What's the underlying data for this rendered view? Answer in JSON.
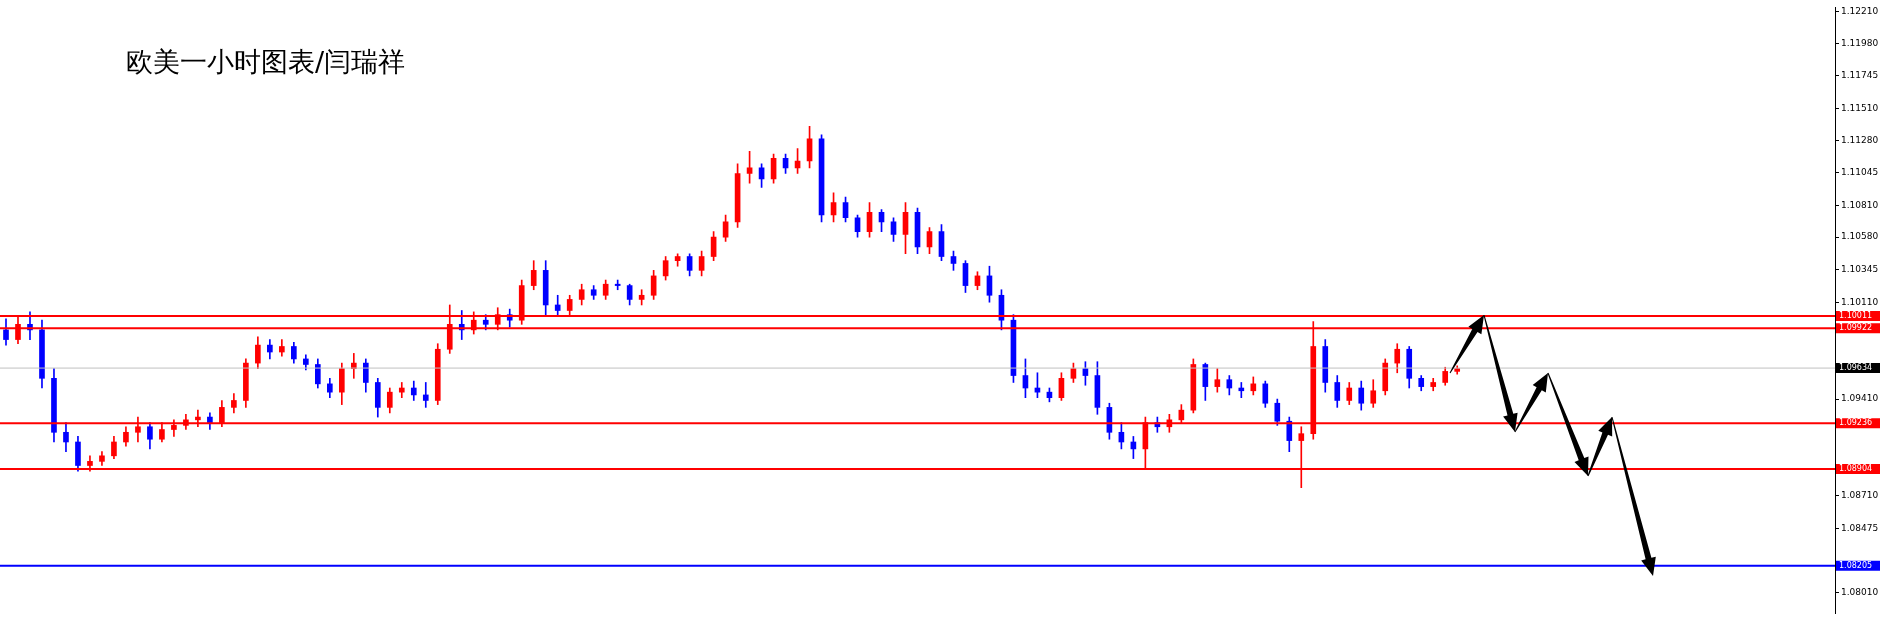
{
  "chart_data": {
    "type": "candlestick",
    "title": "欧美一小时图表/闫瑞祥",
    "categories": [
      null,
      null,
      null,
      null,
      null,
      null,
      null,
      null,
      null,
      null,
      null,
      null,
      null,
      null,
      null,
      null,
      null,
      null,
      null,
      null,
      null,
      null,
      null,
      null,
      null,
      null,
      null,
      null,
      null,
      null,
      null,
      null,
      null,
      null,
      null,
      null,
      null,
      null,
      null,
      null,
      null,
      null,
      null,
      null,
      null,
      null,
      null,
      null,
      null,
      null,
      null,
      null,
      null,
      null,
      null,
      null,
      null,
      null,
      null,
      null,
      null,
      null,
      null,
      null,
      null,
      null,
      null,
      null,
      null,
      null,
      null,
      null,
      null,
      null,
      null,
      null,
      null,
      null,
      null,
      null,
      null,
      null,
      null,
      null,
      null,
      null,
      null,
      null,
      null,
      null,
      null,
      null,
      null,
      null,
      null,
      null,
      null,
      null,
      null,
      null,
      null,
      null,
      null,
      null,
      null,
      null,
      null,
      null,
      null,
      null,
      null,
      null,
      null,
      null,
      null,
      null,
      null,
      null,
      null,
      null,
      null,
      null,
      null,
      null,
      null,
      null,
      null,
      null,
      null,
      null,
      null,
      null,
      null,
      null,
      null,
      null,
      null,
      null,
      null,
      null,
      null,
      null,
      null,
      null,
      null,
      null,
      null,
      null,
      null,
      null,
      null,
      null,
      null
    ],
    "ohlc": [
      [
        1.0991,
        1.0999,
        1.098,
        1.0984
      ],
      [
        1.0984,
        1.1001,
        1.0981,
        1.0995
      ],
      [
        1.0995,
        1.1004,
        1.0984,
        1.0991
      ],
      [
        1.0991,
        1.0998,
        1.0949,
        1.0956
      ],
      [
        1.0956,
        1.0963,
        1.091,
        1.0917
      ],
      [
        1.0917,
        1.0924,
        1.0903,
        1.091
      ],
      [
        1.091,
        1.0914,
        1.0889,
        1.0893
      ],
      [
        1.0893,
        1.09,
        1.0889,
        1.0896
      ],
      [
        1.0896,
        1.0903,
        1.0893,
        1.09
      ],
      [
        1.09,
        1.0914,
        1.0898,
        1.091
      ],
      [
        1.091,
        1.0921,
        1.0907,
        1.0917
      ],
      [
        1.0917,
        1.0928,
        1.091,
        1.0921
      ],
      [
        1.0921,
        1.0924,
        1.0905,
        1.0912
      ],
      [
        1.0912,
        1.0924,
        1.091,
        1.0919
      ],
      [
        1.0919,
        1.0926,
        1.0914,
        1.0922
      ],
      [
        1.0922,
        1.093,
        1.0919,
        1.0926
      ],
      [
        1.0926,
        1.0933,
        1.0921,
        1.0928
      ],
      [
        1.0928,
        1.0931,
        1.0919,
        1.0924
      ],
      [
        1.0924,
        1.094,
        1.0921,
        1.0935
      ],
      [
        1.0935,
        1.0945,
        1.0931,
        1.094
      ],
      [
        1.094,
        1.097,
        1.0935,
        1.0967
      ],
      [
        1.0967,
        1.0986,
        1.0963,
        1.098
      ],
      [
        1.098,
        1.0984,
        1.097,
        1.0975
      ],
      [
        1.0975,
        1.0984,
        1.0972,
        1.0979
      ],
      [
        1.0979,
        1.0982,
        1.0967,
        1.097
      ],
      [
        1.097,
        1.0973,
        1.0962,
        1.0966
      ],
      [
        1.0966,
        1.097,
        1.0949,
        1.0952
      ],
      [
        1.0952,
        1.0956,
        1.0942,
        1.0946
      ],
      [
        1.0946,
        1.0967,
        1.0937,
        1.0963
      ],
      [
        1.0963,
        1.0974,
        1.0956,
        1.0967
      ],
      [
        1.0967,
        1.097,
        1.0946,
        1.0953
      ],
      [
        1.0953,
        1.0956,
        1.0928,
        1.0935
      ],
      [
        1.0935,
        1.0949,
        1.0931,
        1.0946
      ],
      [
        1.0946,
        1.0953,
        1.0942,
        1.0949
      ],
      [
        1.0949,
        1.0954,
        1.094,
        1.0944
      ],
      [
        1.0944,
        1.0953,
        1.0935,
        1.094
      ],
      [
        1.094,
        1.0981,
        1.0937,
        1.0977
      ],
      [
        1.0977,
        1.1009,
        1.0974,
        1.0995
      ],
      [
        1.0995,
        1.1005,
        1.0984,
        1.0991
      ],
      [
        1.0991,
        1.1004,
        1.0988,
        1.0998
      ],
      [
        1.0998,
        1.1002,
        1.0991,
        1.0995
      ],
      [
        1.0995,
        1.1007,
        1.0991,
        1.1002
      ],
      [
        1.1002,
        1.1006,
        1.0993,
        1.0998
      ],
      [
        1.0998,
        1.1027,
        1.0995,
        1.1023
      ],
      [
        1.1023,
        1.1041,
        1.102,
        1.1034
      ],
      [
        1.1034,
        1.1041,
        1.1002,
        1.1009
      ],
      [
        1.1009,
        1.1016,
        1.1002,
        1.1005
      ],
      [
        1.1005,
        1.1016,
        1.1002,
        1.1013
      ],
      [
        1.1013,
        1.1024,
        1.1009,
        1.102
      ],
      [
        1.102,
        1.1023,
        1.1013,
        1.1016
      ],
      [
        1.1016,
        1.1027,
        1.1013,
        1.1024
      ],
      [
        1.1024,
        1.1027,
        1.102,
        1.1023
      ],
      [
        1.1023,
        1.1024,
        1.1009,
        1.1013
      ],
      [
        1.1013,
        1.102,
        1.1009,
        1.1016
      ],
      [
        1.1016,
        1.1034,
        1.1013,
        1.103
      ],
      [
        1.103,
        1.1044,
        1.1027,
        1.1041
      ],
      [
        1.1041,
        1.1046,
        1.1037,
        1.1044
      ],
      [
        1.1044,
        1.1046,
        1.103,
        1.1034
      ],
      [
        1.1034,
        1.1048,
        1.103,
        1.1044
      ],
      [
        1.1044,
        1.1062,
        1.1041,
        1.1058
      ],
      [
        1.1058,
        1.1074,
        1.1055,
        1.1069
      ],
      [
        1.1069,
        1.1111,
        1.1065,
        1.1104
      ],
      [
        1.1104,
        1.112,
        1.1097,
        1.1108
      ],
      [
        1.1108,
        1.1111,
        1.1094,
        1.11
      ],
      [
        1.11,
        1.1118,
        1.1097,
        1.1115
      ],
      [
        1.1115,
        1.1118,
        1.1104,
        1.1108
      ],
      [
        1.1108,
        1.1122,
        1.1104,
        1.1113
      ],
      [
        1.1113,
        1.1138,
        1.1108,
        1.1129
      ],
      [
        1.1129,
        1.1132,
        1.1069,
        1.1074
      ],
      [
        1.1074,
        1.109,
        1.1069,
        1.1083
      ],
      [
        1.1083,
        1.1087,
        1.1069,
        1.1072
      ],
      [
        1.1072,
        1.1074,
        1.1058,
        1.1062
      ],
      [
        1.1062,
        1.1083,
        1.1058,
        1.1076
      ],
      [
        1.1076,
        1.1078,
        1.1062,
        1.1069
      ],
      [
        1.1069,
        1.1072,
        1.1055,
        1.106
      ],
      [
        1.106,
        1.1083,
        1.1046,
        1.1076
      ],
      [
        1.1076,
        1.1079,
        1.1046,
        1.1051
      ],
      [
        1.1051,
        1.1065,
        1.1046,
        1.1062
      ],
      [
        1.1062,
        1.1067,
        1.1041,
        1.1044
      ],
      [
        1.1044,
        1.1048,
        1.1034,
        1.1039
      ],
      [
        1.1039,
        1.1041,
        1.1018,
        1.1023
      ],
      [
        1.1023,
        1.1033,
        1.102,
        1.103
      ],
      [
        1.103,
        1.1037,
        1.1011,
        1.1016
      ],
      [
        1.1016,
        1.102,
        1.0991,
        1.0998
      ],
      [
        1.0998,
        1.1002,
        1.0953,
        1.0958
      ],
      [
        1.0958,
        1.097,
        1.0942,
        1.0949
      ],
      [
        1.0949,
        1.096,
        1.0942,
        1.0946
      ],
      [
        1.0946,
        1.0949,
        1.0939,
        1.0942
      ],
      [
        1.0942,
        1.096,
        1.094,
        1.0956
      ],
      [
        1.0956,
        1.0967,
        1.0953,
        1.0963
      ],
      [
        1.0963,
        1.0968,
        1.0951,
        1.0958
      ],
      [
        1.0958,
        1.0968,
        1.093,
        1.0935
      ],
      [
        1.0935,
        1.0938,
        1.0912,
        1.0917
      ],
      [
        1.0917,
        1.0924,
        1.0905,
        1.091
      ],
      [
        1.091,
        1.0914,
        1.0898,
        1.0905
      ],
      [
        1.0905,
        1.0928,
        1.0891,
        1.0924
      ],
      [
        1.0924,
        1.0928,
        1.0917,
        1.0921
      ],
      [
        1.0921,
        1.093,
        1.0917,
        1.0926
      ],
      [
        1.0926,
        1.0937,
        1.0924,
        1.0933
      ],
      [
        1.0933,
        1.097,
        1.0931,
        1.0966
      ],
      [
        1.0966,
        1.0967,
        1.094,
        1.095
      ],
      [
        1.095,
        1.0963,
        1.0946,
        1.0955
      ],
      [
        1.0955,
        1.0958,
        1.0944,
        1.0949
      ],
      [
        1.0949,
        1.0953,
        1.0942,
        1.0947
      ],
      [
        1.0947,
        1.0957,
        1.0944,
        1.0952
      ],
      [
        1.0952,
        1.0954,
        1.0935,
        1.0938
      ],
      [
        1.0938,
        1.0941,
        1.0922,
        1.0925
      ],
      [
        1.0925,
        1.0928,
        1.0903,
        1.0911
      ],
      [
        1.0911,
        1.0921,
        1.0877,
        1.0916
      ],
      [
        1.0916,
        1.0997,
        1.0912,
        1.0979
      ],
      [
        1.0979,
        1.0984,
        1.0946,
        1.0953
      ],
      [
        1.0953,
        1.0958,
        1.0935,
        1.094
      ],
      [
        1.094,
        1.0953,
        1.0937,
        1.0949
      ],
      [
        1.0949,
        1.0954,
        1.0933,
        1.0938
      ],
      [
        1.0938,
        1.0955,
        1.0935,
        1.0947
      ],
      [
        1.0947,
        1.097,
        1.0944,
        1.0967
      ],
      [
        1.0967,
        1.0981,
        1.096,
        1.0977
      ],
      [
        1.0977,
        1.0979,
        1.0949,
        1.0956
      ],
      [
        1.0956,
        1.0958,
        1.0947,
        1.095
      ],
      [
        1.095,
        1.0956,
        1.0947,
        1.0953
      ],
      [
        1.0953,
        1.0964,
        1.0951,
        1.0961
      ],
      [
        1.0961,
        1.0965,
        1.0959,
        1.0963
      ],
      null,
      null,
      null,
      null,
      null,
      null,
      null,
      null,
      null,
      null,
      null,
      null,
      null,
      null,
      null,
      null,
      null,
      null,
      null,
      null,
      null,
      null,
      null,
      null,
      null,
      null,
      null,
      null,
      null,
      null,
      null
    ],
    "colors": [
      "#0000ff",
      "#ff0000",
      "#0000ff",
      "#0000ff",
      "#0000ff",
      "#0000ff",
      "#0000ff",
      "#ff0000",
      "#ff0000",
      "#ff0000",
      "#ff0000",
      "#ff0000",
      "#0000ff",
      "#ff0000",
      "#ff0000",
      "#ff0000",
      "#ff0000",
      "#0000ff",
      "#ff0000",
      "#ff0000",
      "#ff0000",
      "#ff0000",
      "#0000ff",
      "#ff0000",
      "#0000ff",
      "#0000ff",
      "#0000ff",
      "#0000ff",
      "#ff0000",
      "#ff0000",
      "#0000ff",
      "#0000ff",
      "#ff0000",
      "#ff0000",
      "#0000ff",
      "#0000ff",
      "#ff0000",
      "#ff0000",
      "#0000ff",
      "#ff0000",
      "#0000ff",
      "#ff0000",
      "#0000ff",
      "#ff0000",
      "#ff0000",
      "#0000ff",
      "#0000ff",
      "#ff0000",
      "#ff0000",
      "#0000ff",
      "#ff0000",
      "#0000ff",
      "#0000ff",
      "#ff0000",
      "#ff0000",
      "#ff0000",
      "#ff0000",
      "#0000ff",
      "#ff0000",
      "#ff0000",
      "#ff0000",
      "#ff0000",
      "#ff0000",
      "#0000ff",
      "#ff0000",
      "#0000ff",
      "#ff0000",
      "#ff0000",
      "#0000ff",
      "#ff0000",
      "#0000ff",
      "#0000ff",
      "#ff0000",
      "#0000ff",
      "#0000ff",
      "#ff0000",
      "#0000ff",
      "#ff0000",
      "#0000ff",
      "#0000ff",
      "#0000ff",
      "#ff0000",
      "#0000ff",
      "#0000ff",
      "#0000ff",
      "#0000ff",
      "#0000ff",
      "#0000ff",
      "#ff0000",
      "#ff0000",
      "#0000ff",
      "#0000ff",
      "#0000ff",
      "#0000ff",
      "#0000ff",
      "#ff0000",
      "#0000ff",
      "#ff0000",
      "#ff0000",
      "#ff0000",
      "#0000ff",
      "#ff0000",
      "#0000ff",
      "#0000ff",
      "#ff0000",
      "#0000ff",
      "#0000ff",
      "#0000ff",
      "#ff0000",
      "#ff0000",
      "#0000ff",
      "#0000ff",
      "#ff0000",
      "#0000ff",
      "#ff0000",
      "#ff0000",
      "#ff0000",
      "#0000ff",
      "#0000ff",
      "#ff0000",
      "#ff0000",
      "#ff0000",
      null,
      null,
      null,
      null,
      null,
      null,
      null,
      null,
      null,
      null,
      null,
      null,
      null,
      null,
      null,
      null,
      null,
      null,
      null,
      null,
      null,
      null,
      null,
      null,
      null,
      null,
      null,
      null,
      null,
      null,
      null
    ],
    "ylim": [
      1.0786,
      1.1224
    ],
    "yticks": [
      {
        "value": 1.1221,
        "label": "1.12210"
      },
      {
        "value": 1.1198,
        "label": "1.11980"
      },
      1.11745,
      {
        "value": 1.1151,
        "label": "1.11510"
      },
      {
        "value": 1.1128,
        "label": "1.11280"
      },
      1.11045,
      {
        "value": 1.1081,
        "label": "1.10810"
      },
      {
        "value": 1.1058,
        "label": "1.10580"
      },
      1.10345,
      {
        "value": 1.1011,
        "label": "1.10110"
      },
      {
        "value": 1.0941,
        "label": "1.09410"
      },
      {
        "value": 1.0871,
        "label": "1.08710"
      },
      1.08475,
      {
        "value": 1.0801,
        "label": "1.08010"
      }
    ],
    "ref_lines": [
      {
        "axis": "y",
        "value": 1.10011,
        "label": "1.10011",
        "color": "#ff0000"
      },
      {
        "axis": "y",
        "value": 1.09922,
        "label": "1.09922",
        "color": "#ff0000"
      },
      {
        "axis": "y",
        "value": 1.09634,
        "label": "1.09634",
        "color": "#c0c0c0"
      },
      {
        "axis": "y",
        "value": 1.09236,
        "label": "1.09236",
        "color": "#ff0000"
      },
      {
        "axis": "y",
        "value": 1.08904,
        "label": "1.08904",
        "color": "#ff0000"
      },
      {
        "axis": "y",
        "value": 1.08205,
        "label": "1.08205",
        "color": "#0000ff"
      }
    ],
    "tick_labels": "y"
  }
}
